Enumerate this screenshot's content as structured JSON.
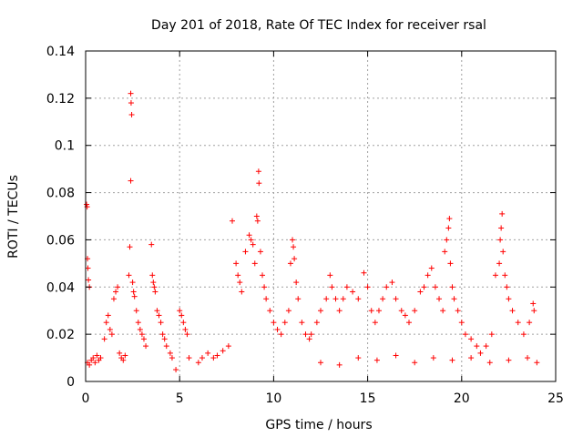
{
  "chart_data": {
    "type": "scatter",
    "title": "Day 201 of 2018, Rate Of TEC Index for receiver rsal",
    "xlabel": "GPS time / hours",
    "ylabel": "ROTI / TECUs",
    "xlim": [
      0,
      25
    ],
    "ylim": [
      0,
      0.14
    ],
    "x_ticks": [
      0,
      5,
      10,
      15,
      20,
      25
    ],
    "x_tick_labels": [
      "0",
      "5",
      "10",
      "15",
      "20",
      "25"
    ],
    "y_ticks": [
      0,
      0.02,
      0.04,
      0.06,
      0.08,
      0.1,
      0.12,
      0.14
    ],
    "y_tick_labels": [
      "0",
      "0.02",
      "0.04",
      "0.06",
      "0.08",
      "0.1",
      "0.12",
      "0.14"
    ],
    "grid": true,
    "marker": "+",
    "color": "#ff0000",
    "series": [
      {
        "name": "ROTI",
        "points": [
          [
            0.05,
            0.075
          ],
          [
            0.08,
            0.074
          ],
          [
            0.1,
            0.052
          ],
          [
            0.12,
            0.048
          ],
          [
            0.15,
            0.043
          ],
          [
            0.2,
            0.04
          ],
          [
            0.1,
            0.008
          ],
          [
            0.2,
            0.007
          ],
          [
            0.3,
            0.009
          ],
          [
            0.4,
            0.01
          ],
          [
            0.5,
            0.008
          ],
          [
            0.6,
            0.011
          ],
          [
            0.7,
            0.009
          ],
          [
            0.8,
            0.01
          ],
          [
            1.0,
            0.018
          ],
          [
            1.1,
            0.025
          ],
          [
            1.2,
            0.028
          ],
          [
            1.3,
            0.022
          ],
          [
            1.4,
            0.02
          ],
          [
            1.5,
            0.035
          ],
          [
            1.6,
            0.038
          ],
          [
            1.7,
            0.04
          ],
          [
            1.8,
            0.012
          ],
          [
            1.9,
            0.01
          ],
          [
            2.0,
            0.009
          ],
          [
            2.1,
            0.011
          ],
          [
            2.3,
            0.045
          ],
          [
            2.35,
            0.057
          ],
          [
            2.4,
            0.122
          ],
          [
            2.42,
            0.118
          ],
          [
            2.45,
            0.113
          ],
          [
            2.4,
            0.085
          ],
          [
            2.5,
            0.042
          ],
          [
            2.55,
            0.038
          ],
          [
            2.6,
            0.036
          ],
          [
            2.7,
            0.03
          ],
          [
            2.8,
            0.025
          ],
          [
            2.9,
            0.022
          ],
          [
            3.0,
            0.02
          ],
          [
            3.1,
            0.018
          ],
          [
            3.2,
            0.015
          ],
          [
            3.5,
            0.058
          ],
          [
            3.55,
            0.045
          ],
          [
            3.6,
            0.042
          ],
          [
            3.65,
            0.04
          ],
          [
            3.7,
            0.038
          ],
          [
            3.8,
            0.03
          ],
          [
            3.9,
            0.028
          ],
          [
            4.0,
            0.025
          ],
          [
            4.1,
            0.02
          ],
          [
            4.2,
            0.018
          ],
          [
            4.3,
            0.015
          ],
          [
            4.5,
            0.012
          ],
          [
            4.6,
            0.01
          ],
          [
            5.0,
            0.03
          ],
          [
            5.1,
            0.028
          ],
          [
            5.2,
            0.025
          ],
          [
            5.3,
            0.022
          ],
          [
            5.4,
            0.02
          ],
          [
            4.8,
            0.005
          ],
          [
            5.5,
            0.01
          ],
          [
            6.0,
            0.008
          ],
          [
            6.2,
            0.01
          ],
          [
            6.5,
            0.012
          ],
          [
            6.8,
            0.01
          ],
          [
            7.0,
            0.011
          ],
          [
            7.3,
            0.013
          ],
          [
            7.6,
            0.015
          ],
          [
            7.8,
            0.068
          ],
          [
            8.0,
            0.05
          ],
          [
            8.1,
            0.045
          ],
          [
            8.2,
            0.042
          ],
          [
            8.3,
            0.038
          ],
          [
            8.5,
            0.055
          ],
          [
            8.7,
            0.062
          ],
          [
            8.8,
            0.06
          ],
          [
            8.9,
            0.058
          ],
          [
            9.0,
            0.05
          ],
          [
            9.1,
            0.07
          ],
          [
            9.15,
            0.068
          ],
          [
            9.2,
            0.089
          ],
          [
            9.22,
            0.084
          ],
          [
            9.3,
            0.055
          ],
          [
            9.4,
            0.045
          ],
          [
            9.5,
            0.04
          ],
          [
            9.6,
            0.035
          ],
          [
            9.8,
            0.03
          ],
          [
            10.0,
            0.025
          ],
          [
            10.2,
            0.022
          ],
          [
            10.4,
            0.02
          ],
          [
            10.6,
            0.025
          ],
          [
            10.8,
            0.03
          ],
          [
            10.9,
            0.05
          ],
          [
            11.0,
            0.06
          ],
          [
            11.05,
            0.057
          ],
          [
            11.1,
            0.052
          ],
          [
            11.2,
            0.042
          ],
          [
            11.3,
            0.035
          ],
          [
            11.5,
            0.025
          ],
          [
            11.7,
            0.02
          ],
          [
            11.9,
            0.018
          ],
          [
            12.0,
            0.02
          ],
          [
            12.3,
            0.025
          ],
          [
            12.5,
            0.03
          ],
          [
            12.8,
            0.035
          ],
          [
            13.0,
            0.045
          ],
          [
            13.1,
            0.04
          ],
          [
            13.3,
            0.035
          ],
          [
            13.5,
            0.03
          ],
          [
            13.7,
            0.035
          ],
          [
            13.9,
            0.04
          ],
          [
            14.2,
            0.038
          ],
          [
            14.5,
            0.035
          ],
          [
            14.8,
            0.046
          ],
          [
            15.0,
            0.04
          ],
          [
            15.2,
            0.03
          ],
          [
            15.4,
            0.025
          ],
          [
            15.6,
            0.03
          ],
          [
            15.8,
            0.035
          ],
          [
            16.0,
            0.04
          ],
          [
            16.3,
            0.042
          ],
          [
            16.5,
            0.035
          ],
          [
            16.8,
            0.03
          ],
          [
            17.0,
            0.028
          ],
          [
            17.2,
            0.025
          ],
          [
            17.5,
            0.03
          ],
          [
            17.8,
            0.038
          ],
          [
            18.0,
            0.04
          ],
          [
            18.2,
            0.045
          ],
          [
            18.4,
            0.048
          ],
          [
            18.6,
            0.04
          ],
          [
            18.8,
            0.035
          ],
          [
            19.0,
            0.03
          ],
          [
            19.1,
            0.055
          ],
          [
            19.2,
            0.06
          ],
          [
            19.3,
            0.065
          ],
          [
            19.35,
            0.069
          ],
          [
            19.4,
            0.05
          ],
          [
            19.5,
            0.04
          ],
          [
            19.6,
            0.035
          ],
          [
            19.8,
            0.03
          ],
          [
            20.0,
            0.025
          ],
          [
            20.2,
            0.02
          ],
          [
            20.5,
            0.018
          ],
          [
            20.8,
            0.015
          ],
          [
            21.0,
            0.012
          ],
          [
            21.3,
            0.015
          ],
          [
            21.6,
            0.02
          ],
          [
            21.8,
            0.045
          ],
          [
            22.0,
            0.05
          ],
          [
            22.05,
            0.06
          ],
          [
            22.1,
            0.065
          ],
          [
            22.15,
            0.071
          ],
          [
            22.2,
            0.055
          ],
          [
            22.3,
            0.045
          ],
          [
            22.4,
            0.04
          ],
          [
            22.5,
            0.035
          ],
          [
            22.7,
            0.03
          ],
          [
            23.0,
            0.025
          ],
          [
            23.3,
            0.02
          ],
          [
            23.6,
            0.025
          ],
          [
            23.8,
            0.033
          ],
          [
            23.85,
            0.03
          ],
          [
            12.5,
            0.008
          ],
          [
            13.5,
            0.007
          ],
          [
            14.5,
            0.01
          ],
          [
            15.5,
            0.009
          ],
          [
            16.5,
            0.011
          ],
          [
            17.5,
            0.008
          ],
          [
            18.5,
            0.01
          ],
          [
            19.5,
            0.009
          ],
          [
            20.5,
            0.01
          ],
          [
            21.5,
            0.008
          ],
          [
            22.5,
            0.009
          ],
          [
            23.5,
            0.01
          ],
          [
            24.0,
            0.008
          ]
        ]
      }
    ]
  }
}
